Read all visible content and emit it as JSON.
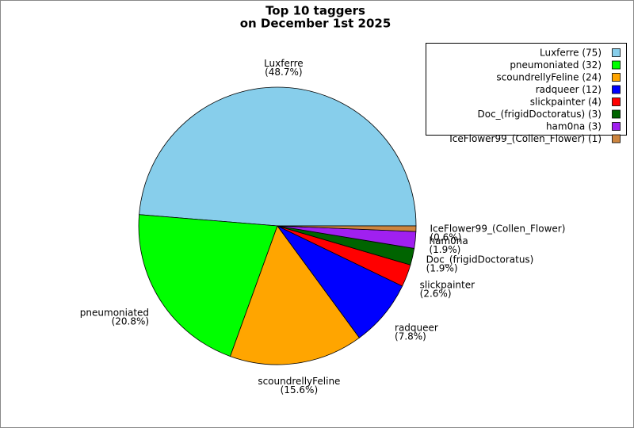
{
  "chart_data": {
    "type": "pie",
    "title": "Top 10 taggers",
    "subtitle": "on December 1st 2025",
    "categories": [
      "Luxferre",
      "pneumoniated",
      "scoundrellyFeline",
      "radqueer",
      "slickpainter",
      "Doc_(frigidDoctoratus)",
      "ham0na",
      "IceFlower99_(Collen_Flower)"
    ],
    "values": [
      75,
      32,
      24,
      12,
      4,
      3,
      3,
      1
    ],
    "value_labels": [
      "(48.7%)",
      "(20.8%)",
      "(15.6%)",
      "(7.8%)",
      "(2.6%)",
      "(1.9%)",
      "(1.9%)",
      "(0.6%)"
    ],
    "legend_labels": [
      "Luxferre (75)",
      "pneumoniated (32)",
      "scoundrellyFeline (24)",
      "radqueer (12)",
      "slickpainter (4)",
      "Doc_(frigidDoctoratus) (3)",
      "ham0na (3)",
      "IceFlower99_(Collen_Flower) (1)"
    ],
    "colors": [
      "#87ceeb",
      "#00ff00",
      "#ffa500",
      "#0000ff",
      "#ff0000",
      "#006400",
      "#a020f0",
      "#cd853f"
    ],
    "legend": "upper right"
  }
}
